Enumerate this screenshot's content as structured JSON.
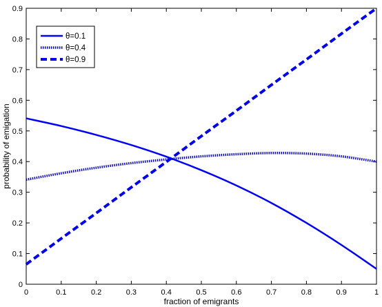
{
  "chart_data": {
    "type": "line",
    "title": "",
    "xlabel": "fraction of emigrants",
    "ylabel": "probability of emigation",
    "xlim": [
      0,
      1
    ],
    "ylim": [
      0,
      0.9
    ],
    "xticks": [
      0,
      0.1,
      0.2,
      0.3,
      0.4,
      0.5,
      0.6,
      0.7,
      0.8,
      0.9,
      1
    ],
    "xtick_labels": [
      "0",
      "0.1",
      "0.2",
      "0.3",
      "0.4",
      "0.5",
      "0.6",
      "0.7",
      "0.8",
      "0.9",
      "1"
    ],
    "yticks": [
      0,
      0.1,
      0.2,
      0.3,
      0.4,
      0.5,
      0.6,
      0.7,
      0.8,
      0.9
    ],
    "ytick_labels": [
      "0",
      "0.1",
      "0.2",
      "0.3",
      "0.4",
      "0.5",
      "0.6",
      "0.7",
      "0.8",
      "0.9"
    ],
    "grid": false,
    "legend_position": "top-left",
    "series": [
      {
        "name": "θ=0.1",
        "line_style": "solid",
        "color": "#0000ff",
        "x": [
          0,
          0.1,
          0.2,
          0.3,
          0.4,
          0.5,
          0.6,
          0.7,
          0.8,
          0.9,
          1
        ],
        "y": [
          0.541,
          0.516,
          0.487,
          0.454,
          0.416,
          0.372,
          0.322,
          0.265,
          0.2,
          0.128,
          0.05
        ]
      },
      {
        "name": "θ=0.4",
        "line_style": "dotted",
        "color": "#0000ff",
        "x": [
          0,
          0.1,
          0.2,
          0.3,
          0.4,
          0.5,
          0.6,
          0.7,
          0.8,
          0.9,
          1
        ],
        "y": [
          0.341,
          0.362,
          0.38,
          0.395,
          0.407,
          0.417,
          0.424,
          0.428,
          0.426,
          0.417,
          0.4
        ]
      },
      {
        "name": "θ=0.9",
        "line_style": "dashed",
        "color": "#0000ff",
        "x": [
          0,
          0.1,
          0.2,
          0.3,
          0.4,
          0.5,
          0.6,
          0.7,
          0.8,
          0.9,
          1
        ],
        "y": [
          0.065,
          0.149,
          0.232,
          0.316,
          0.399,
          0.483,
          0.566,
          0.65,
          0.733,
          0.817,
          0.9
        ]
      }
    ]
  }
}
